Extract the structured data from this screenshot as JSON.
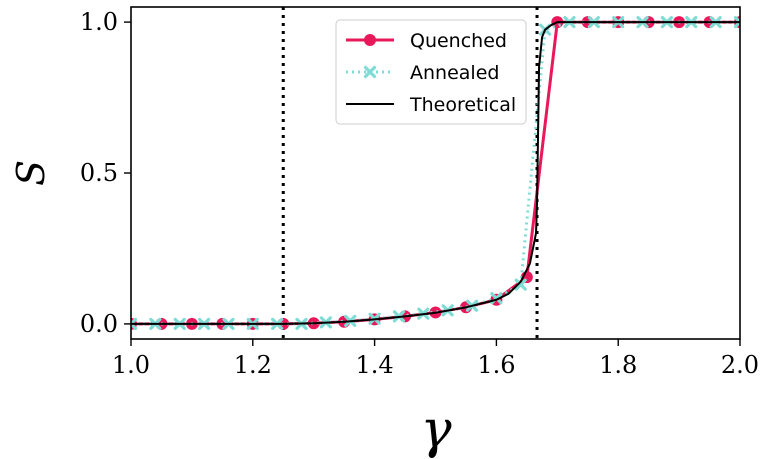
{
  "chart_data": {
    "type": "line",
    "xlabel": "γ",
    "ylabel": "S",
    "xlim": [
      1.0,
      2.0
    ],
    "ylim": [
      -0.05,
      1.05
    ],
    "xticks": [
      "1.0",
      "1.2",
      "1.4",
      "1.6",
      "1.8",
      "2.0"
    ],
    "xtick_values": [
      1.0,
      1.2,
      1.4,
      1.6,
      1.8,
      2.0
    ],
    "yticks": [
      "0.0",
      "0.5",
      "1.0"
    ],
    "ytick_values": [
      0.0,
      0.5,
      1.0
    ],
    "grid": false,
    "legend_position": "top-center-right",
    "vlines": [
      1.25,
      1.6667
    ],
    "series": [
      {
        "name": "Quenched",
        "color": "#e8185a",
        "style": "solid-line-circle-markers",
        "x": [
          1.0,
          1.05,
          1.1,
          1.15,
          1.2,
          1.25,
          1.3,
          1.35,
          1.4,
          1.45,
          1.5,
          1.55,
          1.6,
          1.65,
          1.7,
          1.75,
          1.8,
          1.85,
          1.9,
          1.95,
          2.0
        ],
        "y": [
          0.0,
          0.0,
          0.0,
          0.0,
          0.0,
          0.0,
          0.002,
          0.007,
          0.015,
          0.025,
          0.038,
          0.055,
          0.08,
          0.155,
          1.0,
          1.0,
          1.0,
          1.0,
          1.0,
          1.0,
          1.0
        ]
      },
      {
        "name": "Annealed",
        "color": "#7fdcd4",
        "style": "dotted-line-x-markers",
        "x": [
          1.0,
          1.04,
          1.08,
          1.12,
          1.16,
          1.2,
          1.24,
          1.28,
          1.32,
          1.36,
          1.4,
          1.44,
          1.48,
          1.52,
          1.56,
          1.6,
          1.64,
          1.68,
          1.72,
          1.76,
          1.8,
          1.84,
          1.88,
          1.92,
          1.96,
          2.0
        ],
        "y": [
          0.0,
          0.0,
          0.0,
          0.0,
          0.0,
          0.0,
          0.0,
          0.0,
          0.005,
          0.01,
          0.017,
          0.025,
          0.034,
          0.045,
          0.06,
          0.085,
          0.13,
          0.975,
          1.0,
          1.0,
          1.0,
          1.0,
          1.0,
          1.0,
          1.0,
          1.0
        ]
      },
      {
        "name": "Theoretical",
        "color": "#000000",
        "style": "solid-line",
        "x": [
          1.0,
          1.25,
          1.3,
          1.35,
          1.4,
          1.45,
          1.5,
          1.55,
          1.6,
          1.62,
          1.64,
          1.655,
          1.66,
          1.665,
          1.6667,
          1.67,
          1.675,
          1.68,
          1.69,
          1.7,
          2.0
        ],
        "y": [
          0.0,
          0.0,
          0.002,
          0.007,
          0.015,
          0.025,
          0.037,
          0.055,
          0.08,
          0.1,
          0.14,
          0.2,
          0.25,
          0.3,
          0.4,
          0.85,
          0.95,
          0.975,
          0.99,
          1.0,
          1.0
        ]
      }
    ]
  }
}
